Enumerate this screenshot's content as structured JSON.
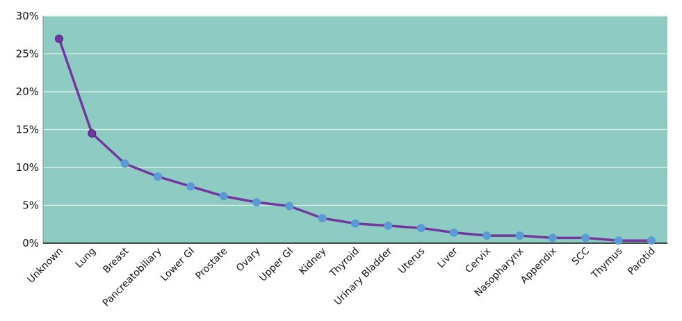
{
  "chart_data": {
    "type": "line",
    "title": "",
    "xlabel": "",
    "ylabel": "",
    "categories": [
      "Unknown",
      "Lung",
      "Breast",
      "Pancreatobiliary",
      "Lower GI",
      "Prostate",
      "Ovary",
      "Upper GI",
      "Kidney",
      "Thyroid",
      "Urinary Bladder",
      "Uterus",
      "Liver",
      "Cervix",
      "Nasopharynx",
      "Appendix",
      "SCC",
      "Thymus",
      "Parotid"
    ],
    "series": [
      {
        "values": [
          27.0,
          14.5,
          10.5,
          8.8,
          7.5,
          6.2,
          5.4,
          4.9,
          3.3,
          2.6,
          2.3,
          2.0,
          1.4,
          1.0,
          1.0,
          0.7,
          0.7,
          0.35,
          0.35
        ]
      }
    ],
    "ylim": [
      0,
      30
    ],
    "yticks": [
      0,
      5,
      10,
      15,
      20,
      25,
      30
    ],
    "ytick_labels": [
      "0%",
      "5%",
      "10%",
      "15%",
      "20%",
      "25%",
      "30%"
    ],
    "grid": "horizontal",
    "legend": "none",
    "colors": {
      "plot_background": "#8ecbc2",
      "line": "#7236a0",
      "marker": "#5b9bd5",
      "highlight_marker": "#7236a0",
      "grid": "#e8f3f1",
      "axis": "#111111"
    }
  }
}
